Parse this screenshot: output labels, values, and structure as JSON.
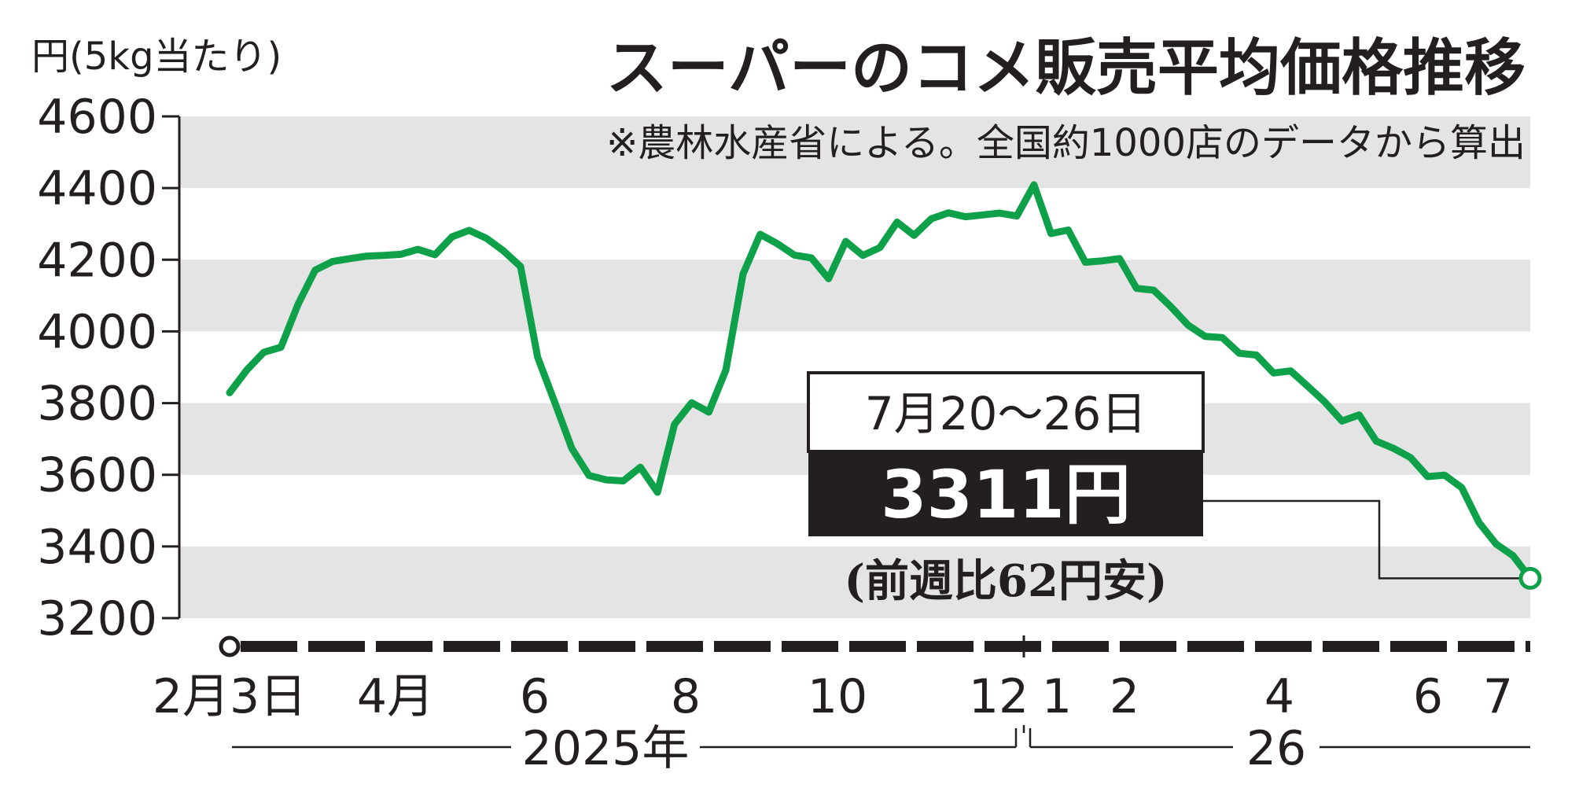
{
  "chart_data": {
    "type": "line",
    "title": "スーパーのコメ販売平均価格推移",
    "subtitle": "※農林水産省による。全国約1000店のデータから算出",
    "ylabel": "円(5kg当たり)",
    "ylim": [
      3200,
      4600
    ],
    "yticks": [
      "4600",
      "4400",
      "4200",
      "4000",
      "3800",
      "3600",
      "3400",
      "3200"
    ],
    "grid": true,
    "line_color": "#0fa14a",
    "xtick_labels": [
      "2月3日",
      "4月",
      "6",
      "8",
      "10",
      "12",
      "1",
      "2",
      "4",
      "6",
      "7"
    ],
    "year_labels": [
      "2025年",
      "26"
    ],
    "series": [
      {
        "values": [
          3829,
          3892,
          3942,
          3956,
          4076,
          4171,
          4195,
          4203,
          4210,
          4212,
          4215,
          4229,
          4214,
          4264,
          4282,
          4260,
          4225,
          4181,
          3928,
          3802,
          3673,
          3598,
          3586,
          3583,
          3621,
          3551,
          3741,
          3801,
          3775,
          3892,
          4160,
          4271,
          4245,
          4213,
          4205,
          4147,
          4251,
          4212,
          4234,
          4305,
          4268,
          4314,
          4331,
          4320,
          4325,
          4330,
          4322,
          4409,
          4273,
          4283,
          4193,
          4197,
          4203,
          4120,
          4115,
          4069,
          4018,
          3986,
          3983,
          3939,
          3934,
          3884,
          3890,
          3847,
          3803,
          3750,
          3767,
          3694,
          3674,
          3648,
          3595,
          3599,
          3564,
          3467,
          3407,
          3374,
          3311
        ]
      }
    ],
    "annotation": {
      "date": "7月20〜26日",
      "price": "3311円",
      "change": "(前週比62円安)"
    }
  }
}
